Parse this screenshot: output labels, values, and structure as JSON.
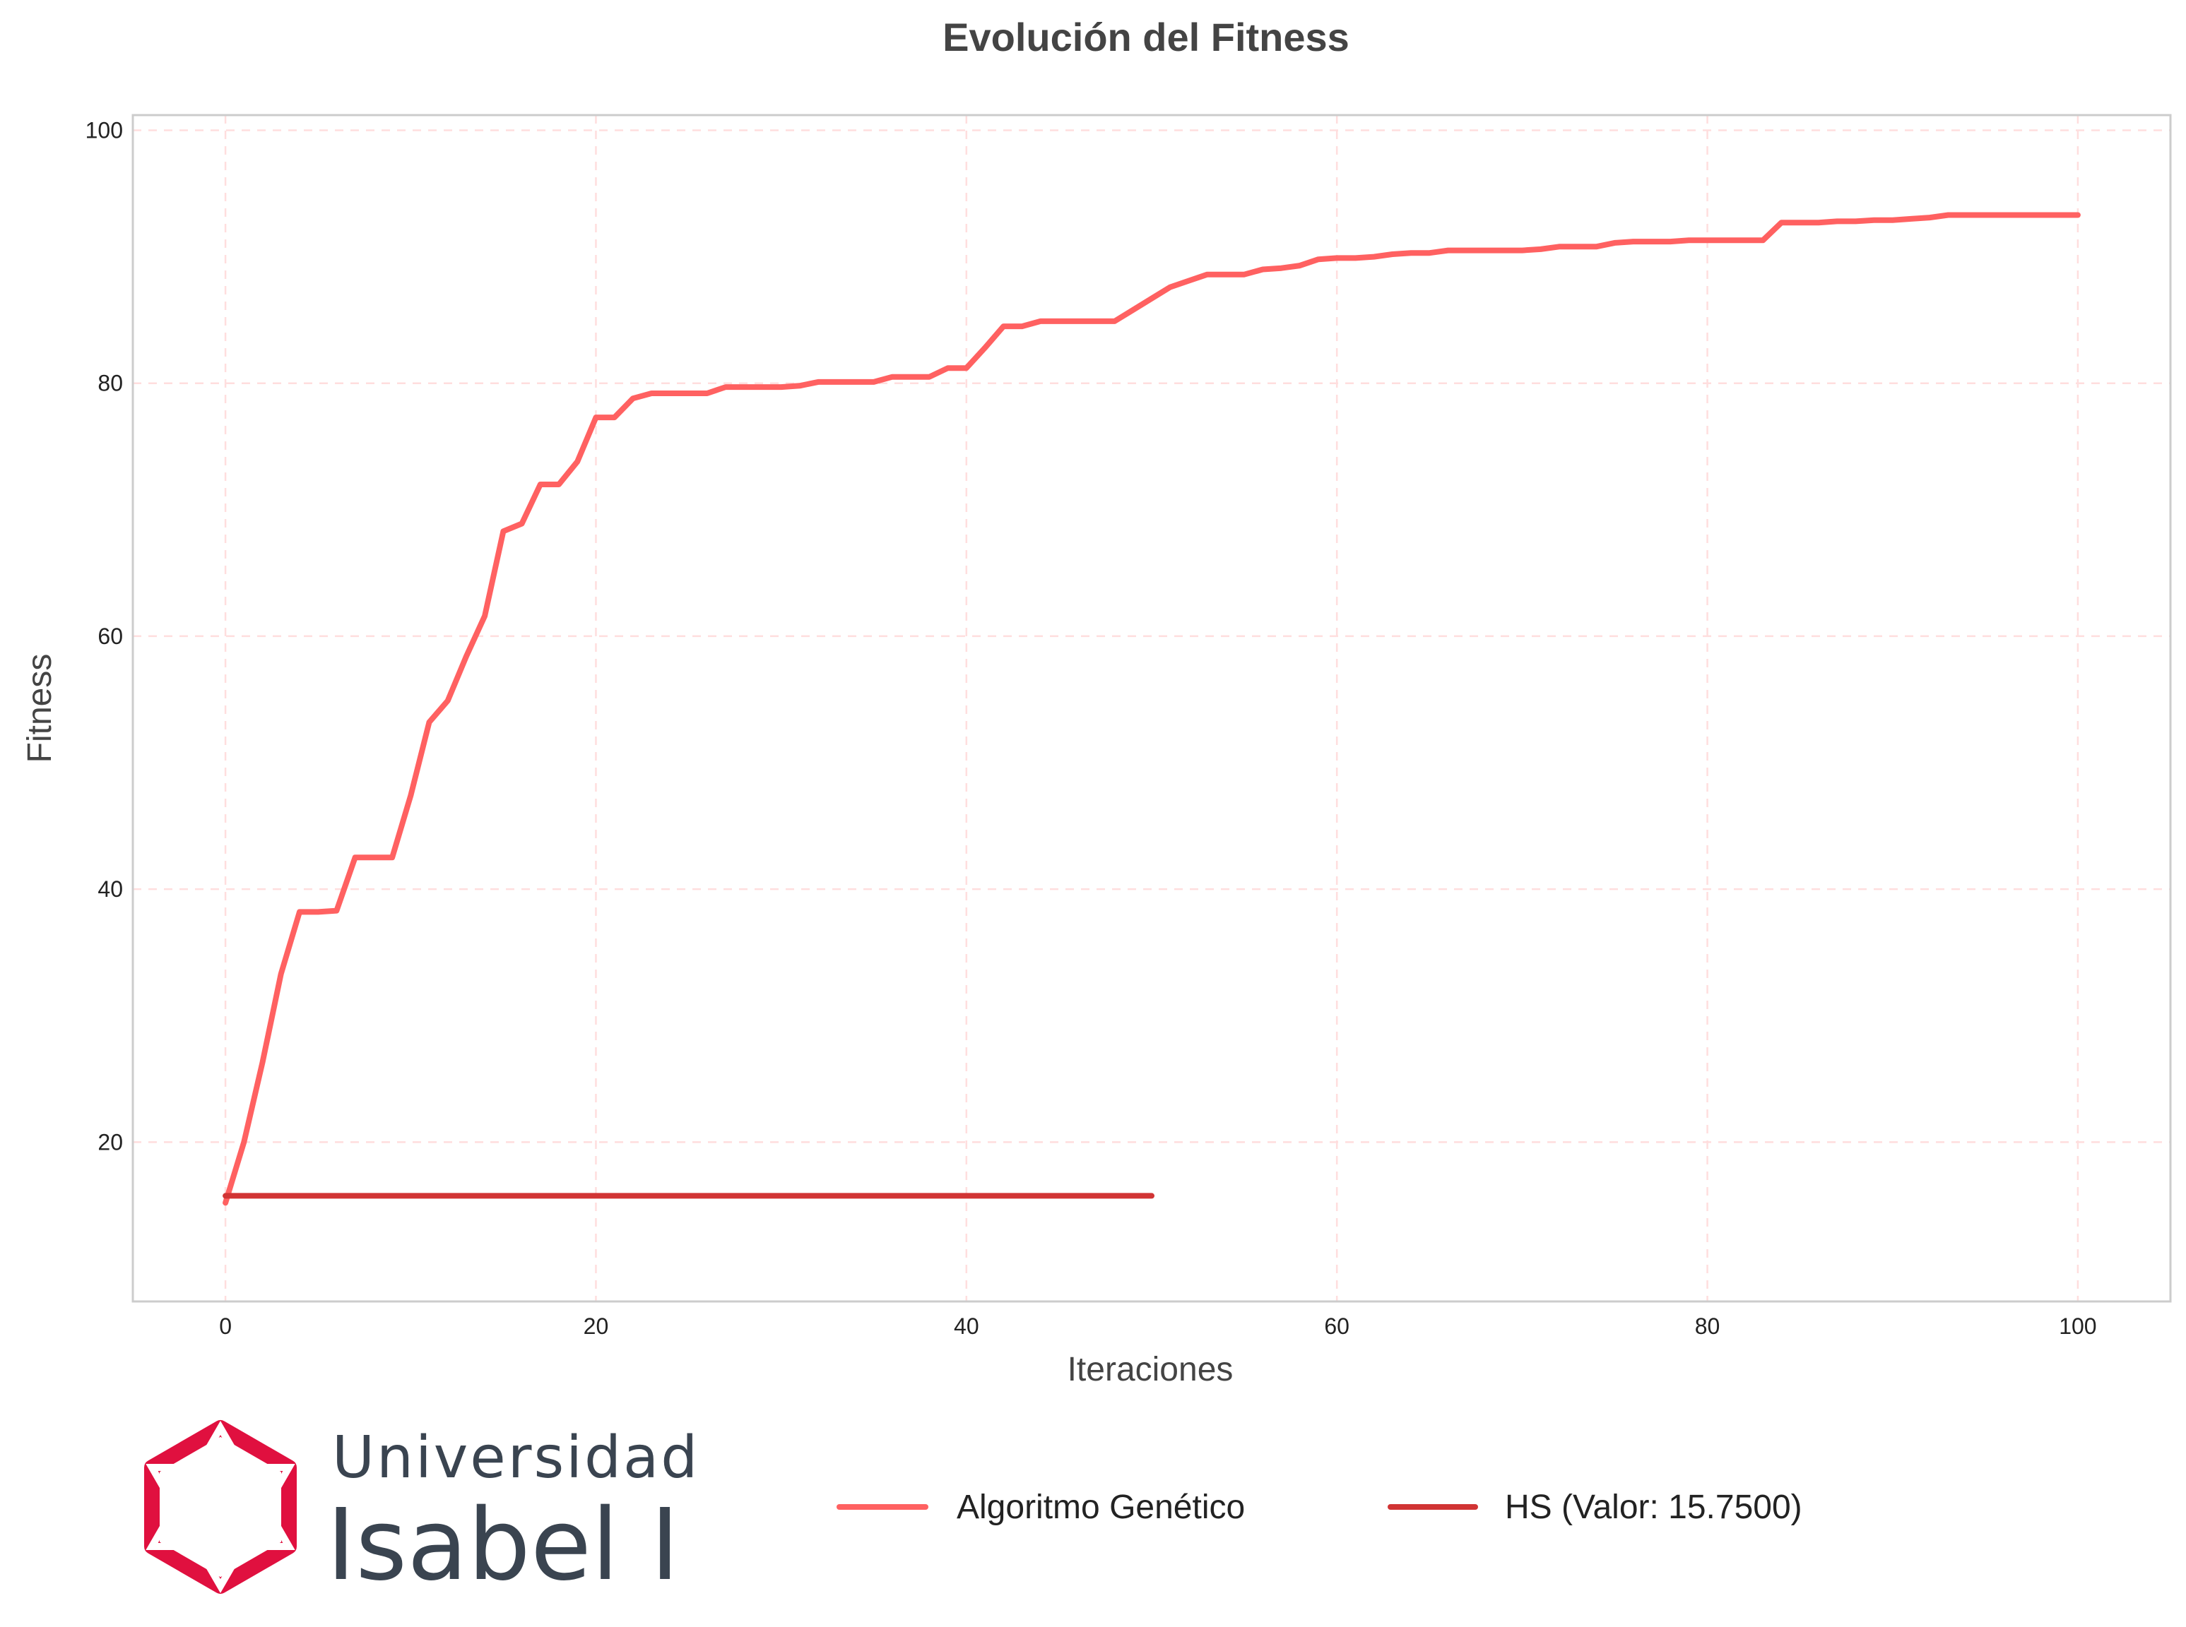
{
  "colors": {
    "ga_line": "#ff6161",
    "hs_line": "#d13434",
    "grid": "#ffdede",
    "axis_border": "#cccccc",
    "title_text": "#444444",
    "tick_text": "#222222",
    "logo_red": "#e0103f",
    "logo_text": "#3a4450"
  },
  "chart_data": {
    "type": "line",
    "title": "Evolución del Fitness",
    "xlabel": "Iteraciones",
    "ylabel": "Fitness",
    "xlim": [
      -5,
      105
    ],
    "ylim": [
      7.4,
      101.2
    ],
    "xticks": [
      0,
      20,
      40,
      60,
      80,
      100
    ],
    "yticks": [
      20,
      40,
      60,
      80,
      100
    ],
    "grid": true,
    "legend_position": "bottom",
    "series": [
      {
        "name": "Algoritmo Genético",
        "color": "#ff6161",
        "x": [
          0,
          1,
          2,
          3,
          4,
          5,
          6,
          7,
          8,
          9,
          10,
          11,
          12,
          13,
          14,
          15,
          16,
          17,
          18,
          19,
          20,
          21,
          22,
          23,
          24,
          25,
          26,
          27,
          28,
          29,
          30,
          31,
          32,
          33,
          34,
          35,
          36,
          37,
          38,
          39,
          40,
          41,
          42,
          43,
          44,
          45,
          46,
          47,
          48,
          49,
          50,
          51,
          52,
          53,
          54,
          55,
          56,
          57,
          58,
          59,
          60,
          61,
          62,
          63,
          64,
          65,
          66,
          67,
          68,
          69,
          70,
          71,
          72,
          73,
          74,
          75,
          76,
          77,
          78,
          79,
          80,
          81,
          82,
          83,
          84,
          85,
          86,
          87,
          88,
          89,
          90,
          91,
          92,
          93,
          94,
          95,
          96,
          97,
          98,
          99,
          100
        ],
        "y": [
          15.2,
          20.0,
          26.3,
          33.3,
          38.2,
          38.2,
          38.3,
          42.5,
          42.5,
          42.5,
          47.4,
          53.2,
          54.9,
          58.4,
          61.6,
          68.3,
          68.9,
          72.0,
          72.0,
          73.8,
          77.3,
          77.3,
          78.8,
          79.2,
          79.2,
          79.2,
          79.2,
          79.7,
          79.7,
          79.7,
          79.7,
          79.8,
          80.1,
          80.1,
          80.1,
          80.1,
          80.5,
          80.5,
          80.5,
          81.2,
          81.2,
          82.8,
          84.5,
          84.5,
          84.9,
          84.9,
          84.9,
          84.9,
          84.9,
          85.8,
          86.7,
          87.6,
          88.1,
          88.6,
          88.6,
          88.6,
          89.0,
          89.1,
          89.3,
          89.8,
          89.9,
          89.9,
          90.0,
          90.2,
          90.3,
          90.3,
          90.5,
          90.5,
          90.5,
          90.5,
          90.5,
          90.6,
          90.8,
          90.8,
          90.8,
          91.1,
          91.2,
          91.2,
          91.2,
          91.3,
          91.3,
          91.3,
          91.3,
          91.3,
          92.7,
          92.7,
          92.7,
          92.8,
          92.8,
          92.9,
          92.9,
          93.0,
          93.1,
          93.3,
          93.3,
          93.3,
          93.3,
          93.3,
          93.3,
          93.3,
          93.3
        ]
      },
      {
        "name": "HS (Valor: 15.7500)",
        "color": "#d13434",
        "x": [
          0,
          50
        ],
        "y": [
          15.75,
          15.75
        ]
      }
    ]
  },
  "logo": {
    "line1": "Universidad",
    "line2": "Isabel I"
  }
}
